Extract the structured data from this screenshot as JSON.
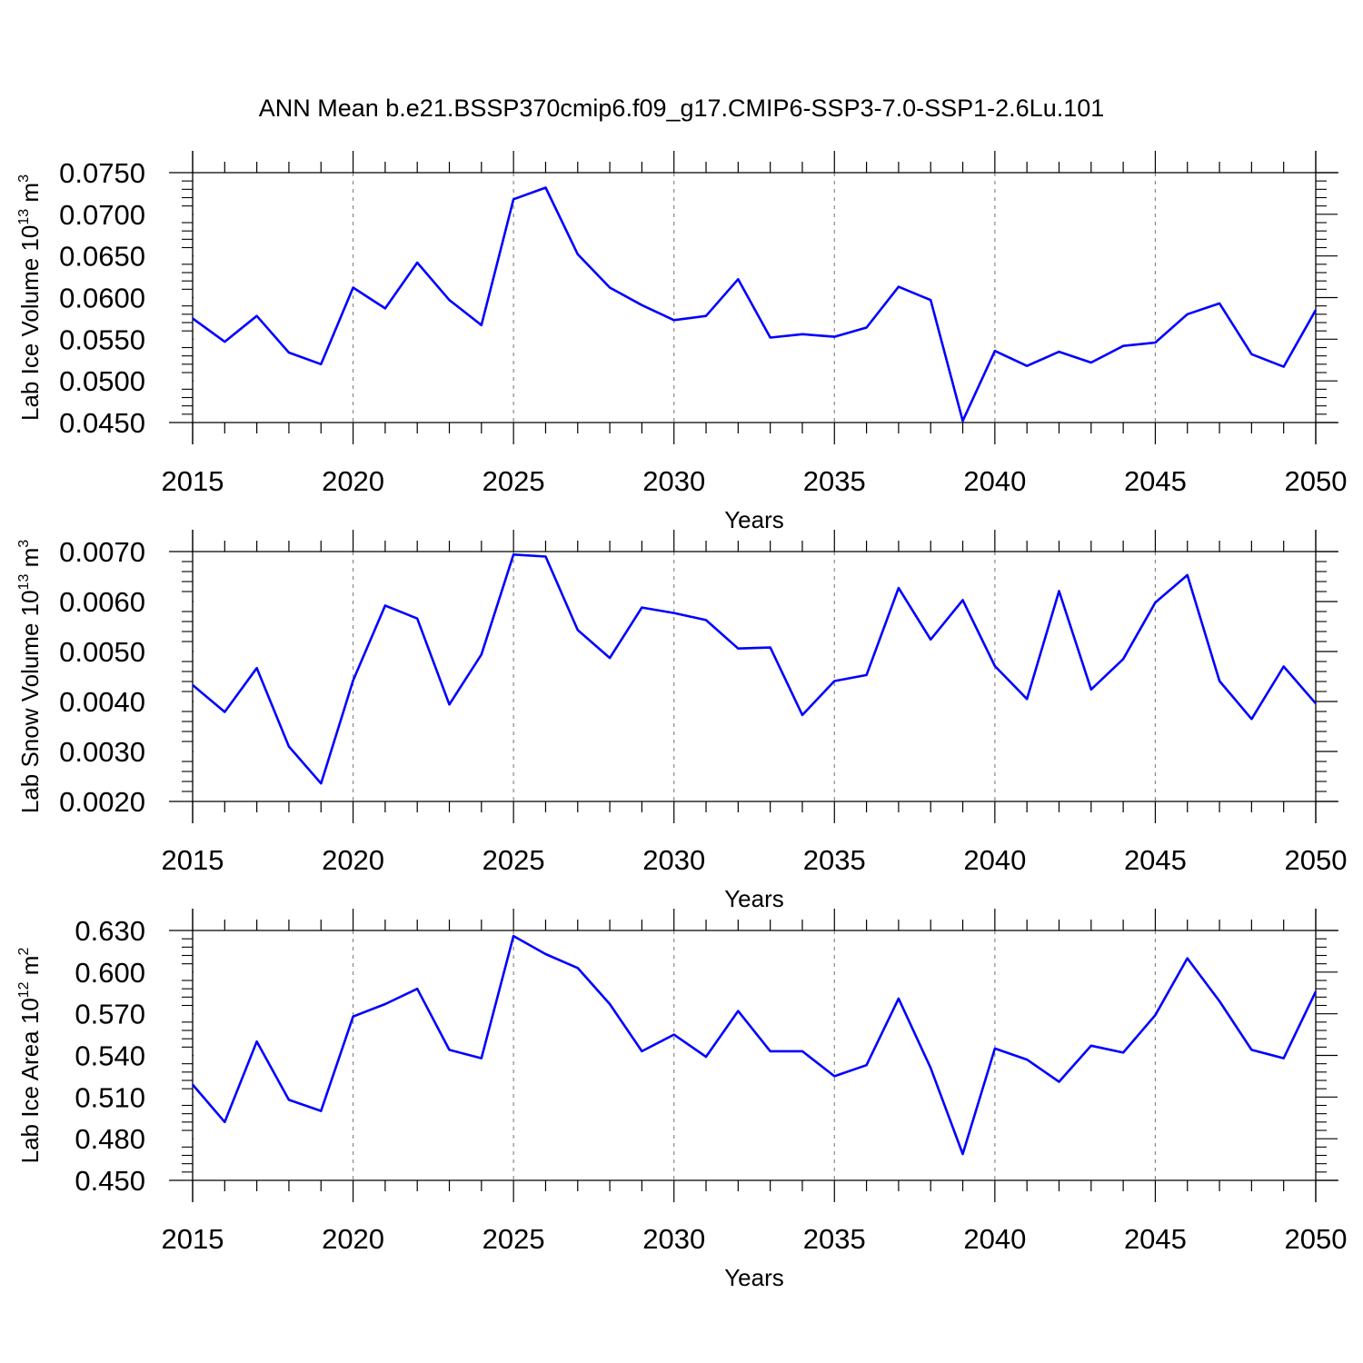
{
  "title": "ANN Mean b.e21.BSSP370cmip6.f09_g17.CMIP6-SSP3-7.0-SSP1-2.6Lu.101",
  "colors": {
    "line": "#0000ff",
    "axis": "#000000",
    "grid": "#888888"
  },
  "chart_data": [
    {
      "type": "line",
      "ylabel": "Lab Ice Volume 10",
      "ylabel_exp": "13",
      "ylabel_unit": " m",
      "ylabel_unit_exp": "3",
      "xlabel": "Years",
      "xlim": [
        2015,
        2050
      ],
      "ylim": [
        0.045,
        0.075
      ],
      "yticks": [
        0.045,
        0.05,
        0.055,
        0.06,
        0.065,
        0.07,
        0.075
      ],
      "ytick_labels": [
        "0.0450",
        "0.0500",
        "0.0550",
        "0.0600",
        "0.0650",
        "0.0700",
        "0.0750"
      ],
      "xticks": [
        2015,
        2020,
        2025,
        2030,
        2035,
        2040,
        2045,
        2050
      ],
      "xtick_labels": [
        "2015",
        "2020",
        "2025",
        "2030",
        "2035",
        "2040",
        "2045",
        "2050"
      ],
      "grid": "vertical dashed at major x ticks",
      "series": [
        {
          "x": [
            2015,
            2016,
            2017,
            2018,
            2019,
            2020,
            2021,
            2022,
            2023,
            2024,
            2025,
            2026,
            2027,
            2028,
            2029,
            2030,
            2031,
            2032,
            2033,
            2034,
            2035,
            2036,
            2037,
            2038,
            2039,
            2040,
            2041,
            2042,
            2043,
            2044,
            2045,
            2046,
            2047,
            2048,
            2049,
            2050
          ],
          "values": [
            0.0575,
            0.0547,
            0.0578,
            0.0534,
            0.052,
            0.0612,
            0.0587,
            0.0642,
            0.0597,
            0.0567,
            0.0718,
            0.0732,
            0.0652,
            0.0612,
            0.0591,
            0.0573,
            0.0578,
            0.0622,
            0.0552,
            0.0556,
            0.0553,
            0.0564,
            0.0613,
            0.0597,
            0.0452,
            0.0536,
            0.0518,
            0.0535,
            0.0522,
            0.0542,
            0.0546,
            0.058,
            0.0593,
            0.0532,
            0.0517,
            0.0585
          ]
        }
      ]
    },
    {
      "type": "line",
      "ylabel": "Lab Snow Volume 10",
      "ylabel_exp": "13",
      "ylabel_unit": " m",
      "ylabel_unit_exp": "3",
      "xlabel": "Years",
      "xlim": [
        2015,
        2050
      ],
      "ylim": [
        0.002,
        0.007
      ],
      "yticks": [
        0.002,
        0.003,
        0.004,
        0.005,
        0.006,
        0.007
      ],
      "ytick_labels": [
        "0.0020",
        "0.0030",
        "0.0040",
        "0.0050",
        "0.0060",
        "0.0070"
      ],
      "xticks": [
        2015,
        2020,
        2025,
        2030,
        2035,
        2040,
        2045,
        2050
      ],
      "xtick_labels": [
        "2015",
        "2020",
        "2025",
        "2030",
        "2035",
        "2040",
        "2045",
        "2050"
      ],
      "grid": "vertical dashed at major x ticks",
      "series": [
        {
          "x": [
            2015,
            2016,
            2017,
            2018,
            2019,
            2020,
            2021,
            2022,
            2023,
            2024,
            2025,
            2026,
            2027,
            2028,
            2029,
            2030,
            2031,
            2032,
            2033,
            2034,
            2035,
            2036,
            2037,
            2038,
            2039,
            2040,
            2041,
            2042,
            2043,
            2044,
            2045,
            2046,
            2047,
            2048,
            2049,
            2050
          ],
          "values": [
            0.00433,
            0.00379,
            0.00467,
            0.0031,
            0.00236,
            0.00442,
            0.00592,
            0.00566,
            0.00394,
            0.00494,
            0.00694,
            0.0069,
            0.00543,
            0.00487,
            0.00588,
            0.00577,
            0.00563,
            0.00506,
            0.00508,
            0.00373,
            0.00441,
            0.00453,
            0.00627,
            0.00524,
            0.00603,
            0.00471,
            0.00405,
            0.00621,
            0.00424,
            0.00485,
            0.00598,
            0.00653,
            0.00441,
            0.00365,
            0.0047,
            0.00396
          ]
        }
      ]
    },
    {
      "type": "line",
      "ylabel": "Lab Ice Area 10",
      "ylabel_exp": "12",
      "ylabel_unit": " m",
      "ylabel_unit_exp": "2",
      "xlabel": "Years",
      "xlim": [
        2015,
        2050
      ],
      "ylim": [
        0.45,
        0.63
      ],
      "yticks": [
        0.45,
        0.48,
        0.51,
        0.54,
        0.57,
        0.6,
        0.63
      ],
      "ytick_labels": [
        "0.450",
        "0.480",
        "0.510",
        "0.540",
        "0.570",
        "0.600",
        "0.630"
      ],
      "xticks": [
        2015,
        2020,
        2025,
        2030,
        2035,
        2040,
        2045,
        2050
      ],
      "xtick_labels": [
        "2015",
        "2020",
        "2025",
        "2030",
        "2035",
        "2040",
        "2045",
        "2050"
      ],
      "grid": "vertical dashed at major x ticks",
      "series": [
        {
          "x": [
            2015,
            2016,
            2017,
            2018,
            2019,
            2020,
            2021,
            2022,
            2023,
            2024,
            2025,
            2026,
            2027,
            2028,
            2029,
            2030,
            2031,
            2032,
            2033,
            2034,
            2035,
            2036,
            2037,
            2038,
            2039,
            2040,
            2041,
            2042,
            2043,
            2044,
            2045,
            2046,
            2047,
            2048,
            2049,
            2050
          ],
          "values": [
            0.519,
            0.492,
            0.55,
            0.508,
            0.5,
            0.568,
            0.577,
            0.588,
            0.544,
            0.538,
            0.626,
            0.613,
            0.603,
            0.577,
            0.543,
            0.555,
            0.539,
            0.572,
            0.543,
            0.543,
            0.525,
            0.533,
            0.581,
            0.531,
            0.469,
            0.545,
            0.537,
            0.521,
            0.547,
            0.542,
            0.569,
            0.61,
            0.579,
            0.544,
            0.538,
            0.586
          ]
        }
      ]
    }
  ]
}
